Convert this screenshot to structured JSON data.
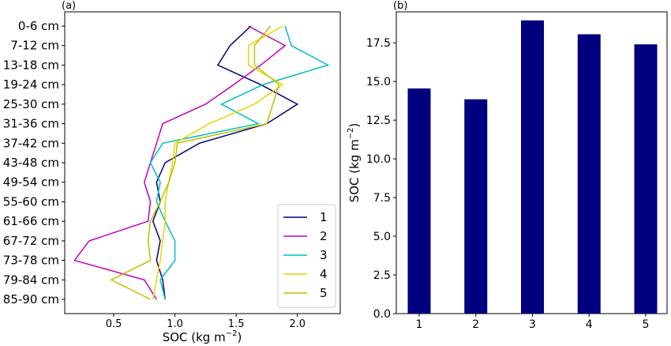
{
  "chart_data": [
    {
      "panel_label": "(a)",
      "type": "line",
      "xlabel": "SOC (kg m",
      "xlabel_sup": "−2",
      "xlabel_close": ")",
      "ylabel": "",
      "xlim": [
        0.1,
        2.35
      ],
      "xticks": [
        "0.5",
        "1.0",
        "1.5",
        "2.0"
      ],
      "xtick_values": [
        0.5,
        1.0,
        1.5,
        2.0
      ],
      "categories": [
        "0-6 cm",
        "7-12 cm",
        "13-18 cm",
        "19-24 cm",
        "25-30 cm",
        "31-36 cm",
        "37-42 cm",
        "43-48 cm",
        "49-54 cm",
        "55-60 cm",
        "61-66 cm",
        "67-72 cm",
        "73-78 cm",
        "79-84 cm",
        "85-90 cm"
      ],
      "legend_position": "lower-right",
      "series": [
        {
          "name": "1",
          "color": "#00007f",
          "values": [
            1.62,
            1.45,
            1.35,
            1.7,
            2.0,
            1.75,
            1.2,
            0.92,
            0.85,
            0.88,
            0.82,
            0.88,
            0.85,
            0.9,
            0.92
          ]
        },
        {
          "name": "2",
          "color": "#bf00bf",
          "values": [
            1.6,
            1.9,
            1.7,
            1.48,
            1.25,
            0.9,
            0.85,
            0.8,
            0.75,
            0.8,
            0.78,
            0.3,
            0.18,
            0.75,
            0.85
          ]
        },
        {
          "name": "3",
          "color": "#00bfbf",
          "values": [
            1.9,
            1.95,
            2.25,
            1.72,
            1.38,
            1.68,
            0.9,
            0.8,
            0.88,
            0.85,
            0.92,
            1.0,
            1.0,
            0.88,
            0.92
          ]
        },
        {
          "name": "4",
          "color": "#e6d600",
          "values": [
            1.88,
            1.6,
            1.6,
            1.88,
            1.65,
            1.28,
            1.0,
            0.98,
            0.95,
            0.92,
            0.92,
            0.9,
            0.88,
            0.85,
            0.82
          ]
        },
        {
          "name": "5",
          "color": "#bfbf00",
          "values": [
            1.78,
            1.65,
            1.65,
            1.85,
            1.8,
            1.75,
            1.02,
            1.0,
            0.95,
            0.88,
            0.8,
            0.78,
            0.8,
            0.48,
            0.8
          ]
        }
      ]
    },
    {
      "panel_label": "(b)",
      "type": "bar",
      "xlabel": "",
      "ylabel": "SOC (kg m",
      "ylabel_sup": "−2",
      "ylabel_close": ")",
      "ylim": [
        0,
        19.5
      ],
      "yticks": [
        "0.0",
        "2.5",
        "5.0",
        "7.5",
        "10.0",
        "12.5",
        "15.0",
        "17.5"
      ],
      "ytick_values": [
        0,
        2.5,
        5.0,
        7.5,
        10.0,
        12.5,
        15.0,
        17.5
      ],
      "categories": [
        "1",
        "2",
        "3",
        "4",
        "5"
      ],
      "values": [
        14.55,
        13.85,
        18.95,
        18.05,
        17.4
      ],
      "color": "#00007f"
    }
  ]
}
